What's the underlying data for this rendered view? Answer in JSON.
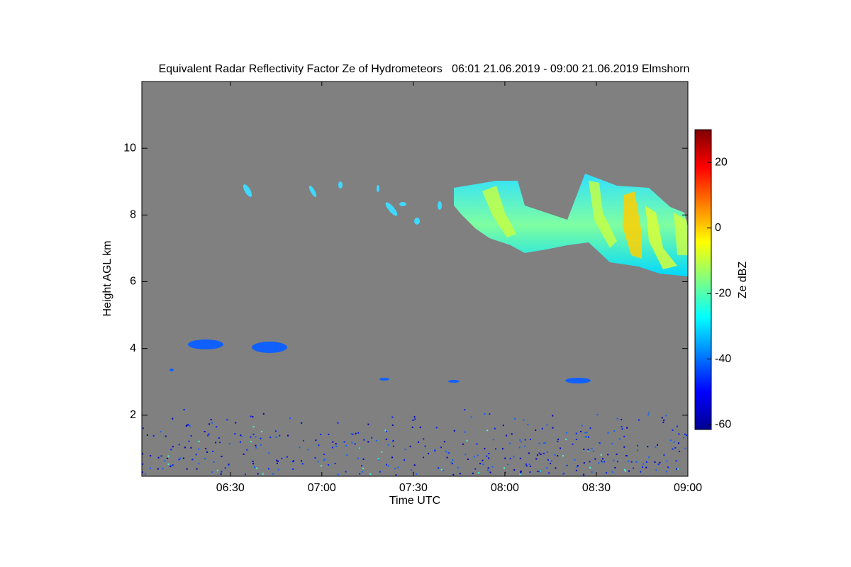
{
  "chart_data": {
    "type": "heatmap",
    "title": "Equivalent Radar Reflectivity Factor Ze of Hydrometeors   06:01 21.06.2019 - 09:00 21.06.2019 Elmshorn",
    "x_label": "Time UTC",
    "y_label": "Height AGL km",
    "xlim": [
      "06:01",
      "09:00"
    ],
    "xticks": [
      "06:30",
      "07:00",
      "07:30",
      "08:00",
      "08:30",
      "09:00"
    ],
    "ylim": [
      0.17,
      12
    ],
    "yticks": [
      2,
      4,
      6,
      8,
      10
    ],
    "background": "#808080",
    "colorbar": {
      "label": "Ze dBZ",
      "lim": [
        -61.5,
        30
      ],
      "ticks": [
        -60,
        -40,
        -20,
        0,
        20
      ]
    }
  }
}
